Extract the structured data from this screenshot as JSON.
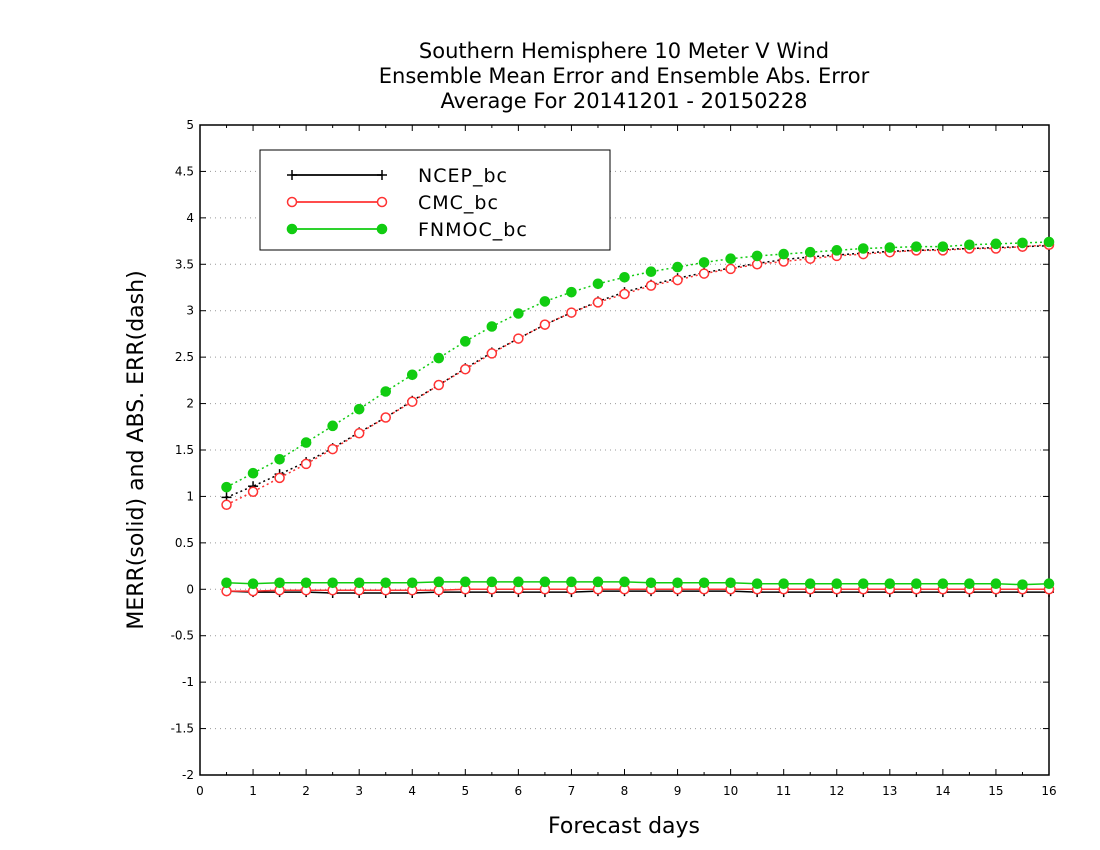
{
  "chart_data": {
    "type": "line",
    "title": [
      "Southern Hemisphere 10 Meter V Wind",
      "Ensemble Mean Error and Ensemble Abs. Error",
      "Average For 20141201 - 20150228"
    ],
    "xlabel": "Forecast days",
    "ylabel": "MERR(solid) and ABS. ERR(dash)",
    "xlim": [
      0,
      16
    ],
    "ylim": [
      -2,
      5
    ],
    "xticks": [
      "0",
      "1",
      "2",
      "3",
      "4",
      "5",
      "6",
      "7",
      "8",
      "9",
      "10",
      "11",
      "12",
      "13",
      "14",
      "15",
      "16"
    ],
    "yticks": [
      "-2",
      "-1.5",
      "-1",
      "-0.5",
      "0",
      "0.5",
      "1",
      "1.5",
      "2",
      "2.5",
      "3",
      "3.5",
      "4",
      "4.5",
      "5"
    ],
    "grid": "horizontal dotted",
    "legend_position": "top-left",
    "x": [
      0.5,
      1,
      1.5,
      2,
      2.5,
      3,
      3.5,
      4,
      4.5,
      5,
      5.5,
      6,
      6.5,
      7,
      7.5,
      8,
      8.5,
      9,
      9.5,
      10,
      10.5,
      11,
      11.5,
      12,
      12.5,
      13,
      13.5,
      14,
      14.5,
      15,
      15.5,
      16
    ],
    "series": [
      {
        "name": "NCEP_bc",
        "color": "#000000",
        "marker": "plus",
        "merr_solid": [
          -0.02,
          -0.03,
          -0.03,
          -0.03,
          -0.04,
          -0.04,
          -0.04,
          -0.04,
          -0.03,
          -0.03,
          -0.03,
          -0.03,
          -0.03,
          -0.03,
          -0.02,
          -0.02,
          -0.02,
          -0.02,
          -0.02,
          -0.02,
          -0.03,
          -0.03,
          -0.03,
          -0.03,
          -0.03,
          -0.03,
          -0.03,
          -0.03,
          -0.03,
          -0.03,
          -0.03,
          -0.03
        ],
        "abs_err_dash": [
          0.99,
          1.11,
          1.24,
          1.37,
          1.52,
          1.69,
          1.85,
          2.03,
          2.2,
          2.38,
          2.55,
          2.7,
          2.85,
          2.98,
          3.1,
          3.2,
          3.28,
          3.35,
          3.41,
          3.46,
          3.51,
          3.55,
          3.58,
          3.6,
          3.62,
          3.64,
          3.65,
          3.66,
          3.67,
          3.68,
          3.69,
          3.7
        ]
      },
      {
        "name": "CMC_bc",
        "color": "#ff3333",
        "marker": "open-circle",
        "merr_solid": [
          -0.02,
          -0.02,
          -0.01,
          -0.01,
          -0.01,
          -0.01,
          -0.01,
          -0.01,
          -0.01,
          0.0,
          0.0,
          0.0,
          0.0,
          0.0,
          0.0,
          0.0,
          0.0,
          0.0,
          0.0,
          0.0,
          0.0,
          0.0,
          0.0,
          0.0,
          0.0,
          0.0,
          0.0,
          0.0,
          0.0,
          0.0,
          0.0,
          0.0
        ],
        "abs_err_dash": [
          0.91,
          1.05,
          1.2,
          1.35,
          1.51,
          1.68,
          1.85,
          2.02,
          2.2,
          2.37,
          2.54,
          2.7,
          2.85,
          2.98,
          3.09,
          3.18,
          3.27,
          3.33,
          3.4,
          3.45,
          3.5,
          3.53,
          3.56,
          3.59,
          3.61,
          3.63,
          3.65,
          3.65,
          3.67,
          3.67,
          3.69,
          3.71
        ]
      },
      {
        "name": "FNMOC_bc",
        "color": "#11cc11",
        "marker": "filled-circle",
        "merr_solid": [
          0.07,
          0.06,
          0.07,
          0.07,
          0.07,
          0.07,
          0.07,
          0.07,
          0.08,
          0.08,
          0.08,
          0.08,
          0.08,
          0.08,
          0.08,
          0.08,
          0.07,
          0.07,
          0.07,
          0.07,
          0.06,
          0.06,
          0.06,
          0.06,
          0.06,
          0.06,
          0.06,
          0.06,
          0.06,
          0.06,
          0.05,
          0.06
        ],
        "abs_err_dash": [
          1.1,
          1.25,
          1.4,
          1.58,
          1.76,
          1.94,
          2.13,
          2.31,
          2.49,
          2.67,
          2.83,
          2.97,
          3.1,
          3.2,
          3.29,
          3.36,
          3.42,
          3.47,
          3.52,
          3.56,
          3.59,
          3.61,
          3.63,
          3.65,
          3.67,
          3.68,
          3.69,
          3.69,
          3.71,
          3.72,
          3.73,
          3.74
        ]
      }
    ]
  }
}
